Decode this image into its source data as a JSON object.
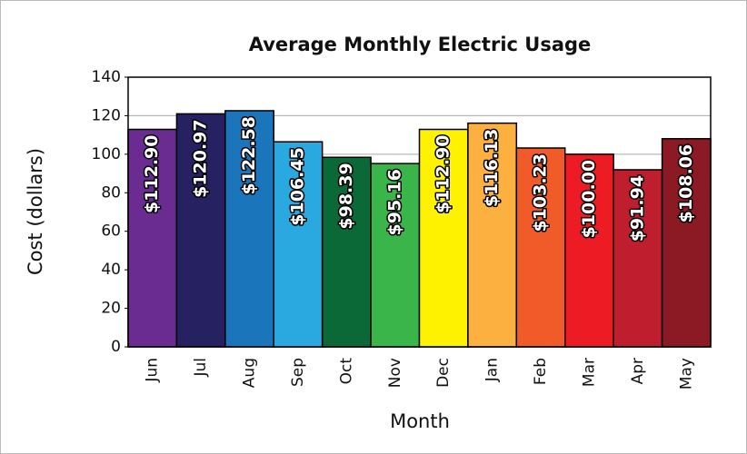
{
  "chart_data": {
    "type": "bar",
    "title": "Average Monthly Electric Usage",
    "x_label": "Month",
    "y_label": "Cost (dollars)",
    "categories": [
      "Jun",
      "Jul",
      "Aug",
      "Sep",
      "Oct",
      "Nov",
      "Dec",
      "Jan",
      "Feb",
      "Mar",
      "Apr",
      "May"
    ],
    "values": [
      112.9,
      120.97,
      122.58,
      106.45,
      98.39,
      95.16,
      112.9,
      116.13,
      103.23,
      100.0,
      91.94,
      108.06
    ],
    "value_labels": [
      "$112.90",
      "$120.97",
      "$122.58",
      "$106.45",
      "$98.39",
      "$95.16",
      "$112.90",
      "$116.13",
      "$103.23",
      "$100.00",
      "$91.94",
      "$108.06"
    ],
    "colors": [
      "#6a2c91",
      "#262262",
      "#1b75bb",
      "#29a9e0",
      "#0b6938",
      "#39b54a",
      "#fff200",
      "#fbb040",
      "#f15a29",
      "#ed1c24",
      "#be1e2d",
      "#8b1a24"
    ],
    "ylim": [
      0,
      140
    ],
    "yticks": [
      0,
      20,
      40,
      60,
      80,
      100,
      120,
      140
    ],
    "grid": true
  }
}
